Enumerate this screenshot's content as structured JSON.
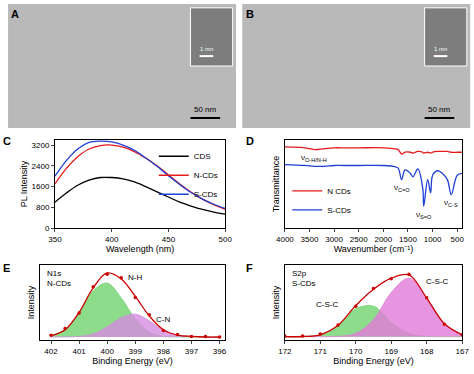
{
  "chart_data": [
    {
      "type": "image",
      "title": "A",
      "scale_bar": "50 nm",
      "inset_scale_bar": "1 nm"
    },
    {
      "type": "image",
      "title": "B",
      "scale_bar": "50 nm",
      "inset_scale_bar": "1 nm"
    },
    {
      "type": "line",
      "title": "C",
      "xlabel": "Wavelength (nm)",
      "ylabel": "PL Intensity",
      "x": [
        350,
        360,
        370,
        380,
        390,
        400,
        410,
        420,
        430,
        440,
        450,
        460,
        470,
        480,
        490,
        500
      ],
      "series": [
        {
          "name": "CDS",
          "color": "#000000",
          "values": [
            1000,
            1350,
            1650,
            1850,
            1950,
            1950,
            1900,
            1780,
            1600,
            1400,
            1200,
            1000,
            850,
            720,
            620,
            540
          ]
        },
        {
          "name": "N-CDs",
          "color": "#e41a1c",
          "values": [
            1700,
            2300,
            2750,
            3050,
            3180,
            3200,
            3120,
            2950,
            2700,
            2400,
            2050,
            1700,
            1380,
            1120,
            900,
            720
          ]
        },
        {
          "name": "S-CDs",
          "color": "#1f3fd6",
          "values": [
            2000,
            2600,
            3050,
            3300,
            3350,
            3320,
            3200,
            3000,
            2700,
            2380,
            2020,
            1680,
            1370,
            1120,
            920,
            760
          ]
        }
      ],
      "xlim": [
        350,
        500
      ],
      "xticks": [
        350,
        400,
        450,
        500
      ],
      "ylim": [
        0,
        3400
      ],
      "yticks": [
        0,
        800,
        1600,
        2400,
        3200
      ],
      "grid": false,
      "legend": "top right"
    },
    {
      "type": "line",
      "title": "D",
      "xlabel": "Wavenumber (cm⁻¹)",
      "ylabel": "Transmittance",
      "x": [
        4000,
        3600,
        3400,
        3200,
        3000,
        2800,
        2500,
        2000,
        1800,
        1700,
        1630,
        1560,
        1450,
        1400,
        1300,
        1200,
        1180,
        1100,
        1040,
        1000,
        900,
        800,
        700,
        620,
        500,
        400
      ],
      "series": [
        {
          "name": "N CDs",
          "color": "#e41a1c",
          "values": [
            0.92,
            0.91,
            0.89,
            0.9,
            0.91,
            0.91,
            0.91,
            0.91,
            0.9,
            0.89,
            0.84,
            0.86,
            0.86,
            0.85,
            0.87,
            0.86,
            0.85,
            0.86,
            0.85,
            0.86,
            0.87,
            0.87,
            0.87,
            0.86,
            0.86,
            0.86
          ]
        },
        {
          "name": "S-CDs",
          "color": "#1f3fd6",
          "values": [
            0.72,
            0.71,
            0.7,
            0.7,
            0.71,
            0.71,
            0.71,
            0.71,
            0.7,
            0.68,
            0.55,
            0.66,
            0.62,
            0.58,
            0.67,
            0.45,
            0.25,
            0.55,
            0.4,
            0.6,
            0.65,
            0.62,
            0.55,
            0.38,
            0.6,
            0.62
          ]
        }
      ],
      "annotations": [
        {
          "text": "ν",
          "sub": "O-H/N-H",
          "x": 3400,
          "y": 0.8
        },
        {
          "text": "ν",
          "sub": "C=O",
          "x": 1630,
          "y": 0.45
        },
        {
          "text": "ν",
          "sub": "S=O",
          "x": 1180,
          "y": 0.15
        },
        {
          "text": "ν",
          "sub": "C-S",
          "x": 620,
          "y": 0.28
        }
      ],
      "xlim": [
        4000,
        400
      ],
      "xticks": [
        4000,
        3500,
        3000,
        2500,
        2000,
        1500,
        1000,
        500
      ],
      "ylim": [
        0,
        1
      ],
      "tick_labels": "x",
      "grid": false,
      "legend": "bottom left"
    },
    {
      "type": "line",
      "title": "E",
      "subtitle": [
        "N1s",
        "N-CDs"
      ],
      "xlabel": "Binding Energy (eV)",
      "ylabel": "Intensity",
      "x": [
        402,
        401.5,
        401,
        400.5,
        400,
        399.5,
        399,
        398.5,
        398,
        397.5,
        397,
        396.5,
        396
      ],
      "series": [
        {
          "type": "area",
          "color": "#6fd36f",
          "values": [
            0.02,
            0.12,
            0.4,
            0.77,
            0.9,
            0.65,
            0.3,
            0.08,
            0.01,
            0,
            0,
            0,
            0
          ]
        },
        {
          "type": "area",
          "color": "#d68be0",
          "values": [
            0,
            0,
            0.01,
            0.05,
            0.17,
            0.32,
            0.38,
            0.27,
            0.11,
            0.03,
            0.01,
            0,
            0
          ]
        },
        {
          "type": "line",
          "color": "#cc0000",
          "values": [
            0.02,
            0.12,
            0.41,
            0.82,
            1.07,
            0.97,
            0.68,
            0.35,
            0.12,
            0.03,
            0.01,
            0,
            0
          ]
        },
        {
          "type": "scatter",
          "marker": "circle",
          "color": "#cc0000",
          "values": [
            0.03,
            0.14,
            0.4,
            0.84,
            1.05,
            0.99,
            0.66,
            0.37,
            0.11,
            0.04,
            0.01,
            0.01,
            0
          ]
        }
      ],
      "annotations": [
        {
          "text": "N-H",
          "x": 399.0,
          "y": 1.0
        },
        {
          "text": "C-N",
          "x": 398.0,
          "y": 0.3
        }
      ],
      "xlim": [
        402.4,
        395.8
      ],
      "xticks": [
        402,
        401,
        400,
        399,
        398,
        397,
        396
      ],
      "ylim": [
        -0.05,
        1.2
      ],
      "tick_labels": "x",
      "grid": false
    },
    {
      "type": "line",
      "title": "F",
      "subtitle": [
        "S2p",
        "S-CDs"
      ],
      "xlabel": "Binding Energy (eV)",
      "ylabel": "Intensity",
      "x": [
        172,
        171.5,
        171,
        170.5,
        170,
        169.5,
        169,
        168.5,
        168,
        167.5,
        167
      ],
      "series": [
        {
          "type": "area",
          "color": "#6fd36f",
          "values": [
            0,
            0.003,
            0.03,
            0.17,
            0.43,
            0.47,
            0.22,
            0.05,
            0.005,
            0,
            0
          ]
        },
        {
          "type": "area",
          "color": "#e27ad9",
          "values": [
            0,
            0,
            0,
            0.005,
            0.05,
            0.26,
            0.68,
            0.9,
            0.59,
            0.2,
            0.03
          ]
        },
        {
          "type": "line",
          "color": "#cc0000",
          "values": [
            0,
            0.003,
            0.03,
            0.175,
            0.48,
            0.73,
            0.9,
            0.95,
            0.595,
            0.2,
            0.03
          ]
        },
        {
          "type": "scatter",
          "marker": "circle",
          "color": "#cc0000",
          "values": [
            0.01,
            0.01,
            0.04,
            0.18,
            0.47,
            0.74,
            0.89,
            0.96,
            0.6,
            0.19,
            0.03
          ]
        }
      ],
      "annotations": [
        {
          "text": "C-S-C",
          "x": 170.8,
          "y": 0.5
        },
        {
          "text": "C-S-C",
          "x": 167.7,
          "y": 0.85
        }
      ],
      "xlim": [
        172,
        167
      ],
      "xticks": [
        172,
        171,
        170,
        169,
        168,
        167
      ],
      "ylim": [
        -0.05,
        1.1
      ],
      "tick_labels": "x",
      "grid": false
    }
  ]
}
